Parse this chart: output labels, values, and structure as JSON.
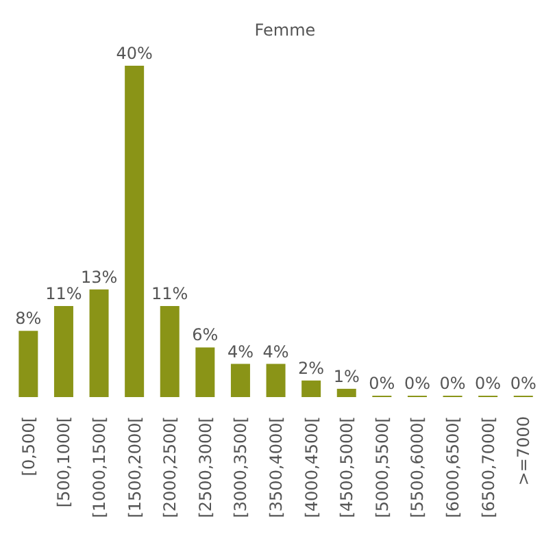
{
  "chart_data": {
    "type": "bar",
    "title": "Femme",
    "categories": [
      "[0,500[",
      "[500,1000[",
      "[1000,1500[",
      "[1500,2000[",
      "[2000,2500[",
      "[2500,3000[",
      "[3000,3500[",
      "[3500,4000[",
      "[4000,4500[",
      "[4500,5000[",
      "[5000,5500[",
      "[5500,6000[",
      "[6000,6500[",
      "[6500,7000[",
      ">=7000"
    ],
    "values": [
      8,
      11,
      13,
      40,
      11,
      6,
      4,
      4,
      2,
      1,
      0,
      0,
      0,
      0,
      0
    ],
    "value_labels": [
      "8%",
      "11%",
      "13%",
      "40%",
      "11%",
      "6%",
      "4%",
      "4%",
      "2%",
      "1%",
      "0%",
      "0%",
      "0%",
      "0%",
      "0%"
    ],
    "color": "#8a9417"
  }
}
